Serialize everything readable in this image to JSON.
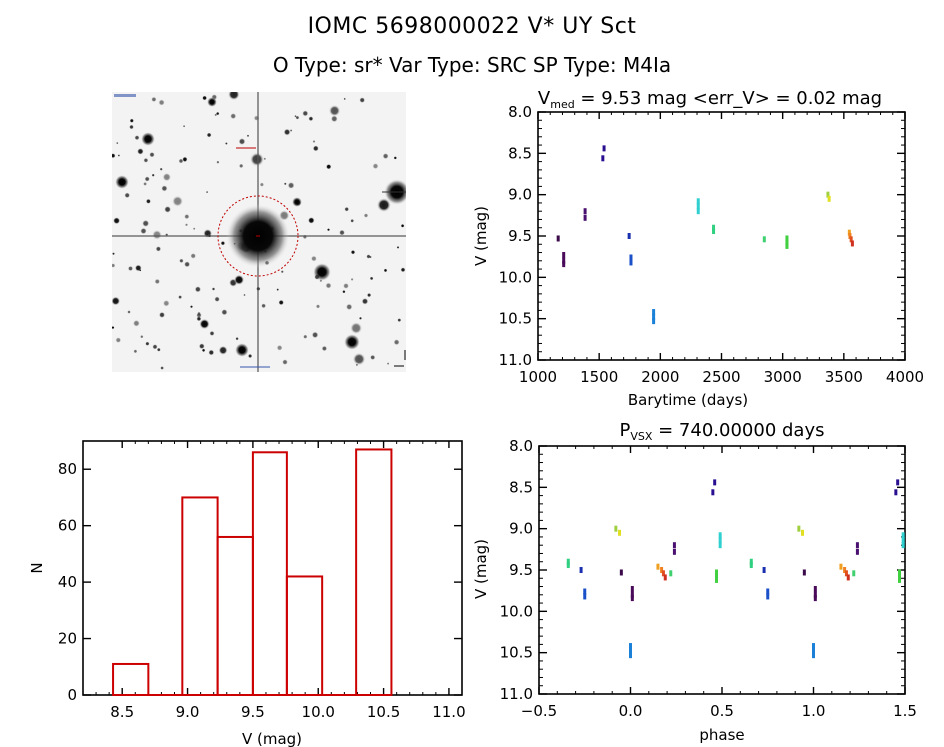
{
  "header": {
    "title": "IOMC 5698000022    V* UY Sct",
    "subtitle": "O Type: sr*   Var Type: SRC   SP Type: M4Ia"
  },
  "sky_image": {
    "description": "Inverted grayscale star-field cutout with red dashed circle marking target"
  },
  "colors": {
    "histogram": "#cc0000",
    "axis": "#000000",
    "circle": "#cc0000"
  },
  "chart_data": [
    {
      "type": "scatter",
      "id": "lightcurve",
      "title_main": "V",
      "title_sub": "med",
      "title_rest": " = 9.53 mag <err_V> = 0.02 mag",
      "xlabel": "Barytime (days)",
      "ylabel": "V (mag)",
      "xlim": [
        1000,
        4000
      ],
      "ylim": [
        11.0,
        8.0
      ],
      "xticks": [
        1000,
        1500,
        2000,
        2500,
        3000,
        3500,
        4000
      ],
      "xtick_labels": [
        "1000",
        "1500",
        "2000",
        "2500",
        "3000",
        "3500",
        "4000"
      ],
      "yticks": [
        8.0,
        8.5,
        9.0,
        9.5,
        10.0,
        10.5,
        11.0
      ],
      "ytick_labels": [
        "8.0",
        "8.5",
        "9.0",
        "9.5",
        "10.0",
        "10.5",
        "11.0"
      ],
      "points": [
        {
          "x": 1165,
          "y": 9.53,
          "color": "#3a0a4a"
        },
        {
          "x": 1210,
          "y": 9.73,
          "color": "#4a0a5a"
        },
        {
          "x": 1210,
          "y": 9.8,
          "color": "#4a0a5a"
        },
        {
          "x": 1210,
          "y": 9.84,
          "color": "#4a0a5a"
        },
        {
          "x": 1385,
          "y": 9.2,
          "color": "#4a1070"
        },
        {
          "x": 1385,
          "y": 9.28,
          "color": "#4a1070"
        },
        {
          "x": 1540,
          "y": 8.44,
          "color": "#2a1090"
        },
        {
          "x": 1530,
          "y": 8.56,
          "color": "#2a1090"
        },
        {
          "x": 1745,
          "y": 9.5,
          "color": "#1a30b0"
        },
        {
          "x": 1760,
          "y": 9.76,
          "color": "#1a50c8"
        },
        {
          "x": 1760,
          "y": 9.82,
          "color": "#1a50c8"
        },
        {
          "x": 1945,
          "y": 10.42,
          "color": "#1a80d8"
        },
        {
          "x": 1945,
          "y": 10.48,
          "color": "#1a80d8"
        },
        {
          "x": 1945,
          "y": 10.53,
          "color": "#1a80d8"
        },
        {
          "x": 2310,
          "y": 9.08,
          "color": "#30d0d0"
        },
        {
          "x": 2310,
          "y": 9.14,
          "color": "#30d0d0"
        },
        {
          "x": 2310,
          "y": 9.2,
          "color": "#30d0d0"
        },
        {
          "x": 2435,
          "y": 9.4,
          "color": "#30d080"
        },
        {
          "x": 2435,
          "y": 9.44,
          "color": "#30d080"
        },
        {
          "x": 2850,
          "y": 9.54,
          "color": "#40d070"
        },
        {
          "x": 3035,
          "y": 9.53,
          "color": "#40d040"
        },
        {
          "x": 3035,
          "y": 9.58,
          "color": "#40d040"
        },
        {
          "x": 3035,
          "y": 9.62,
          "color": "#40d040"
        },
        {
          "x": 3370,
          "y": 9.0,
          "color": "#a0d040"
        },
        {
          "x": 3380,
          "y": 9.05,
          "color": "#e0e020"
        },
        {
          "x": 3545,
          "y": 9.46,
          "color": "#f0a020"
        },
        {
          "x": 3550,
          "y": 9.5,
          "color": "#f08020"
        },
        {
          "x": 3560,
          "y": 9.54,
          "color": "#e05020"
        },
        {
          "x": 3570,
          "y": 9.59,
          "color": "#d03020"
        }
      ]
    },
    {
      "type": "bar",
      "id": "histogram",
      "xlabel": "V (mag)",
      "ylabel": "N",
      "xlim": [
        8.2,
        11.1
      ],
      "ylim": [
        0,
        90
      ],
      "xticks": [
        8.5,
        9.0,
        9.5,
        10.0,
        10.5,
        11.0
      ],
      "xtick_labels": [
        "8.5",
        "9.0",
        "9.5",
        "10.0",
        "10.5",
        "11.0"
      ],
      "yticks": [
        0,
        20,
        40,
        60,
        80
      ],
      "ytick_labels": [
        "0",
        "20",
        "40",
        "60",
        "80"
      ],
      "bins": [
        {
          "left": 8.43,
          "right": 8.7,
          "count": 11
        },
        {
          "left": 8.7,
          "right": 8.96,
          "count": 0
        },
        {
          "left": 8.96,
          "right": 9.23,
          "count": 70
        },
        {
          "left": 9.23,
          "right": 9.5,
          "count": 56
        },
        {
          "left": 9.5,
          "right": 9.76,
          "count": 86
        },
        {
          "left": 9.76,
          "right": 10.03,
          "count": 42
        },
        {
          "left": 10.03,
          "right": 10.29,
          "count": 0
        },
        {
          "left": 10.29,
          "right": 10.56,
          "count": 87
        }
      ]
    },
    {
      "type": "scatter",
      "id": "phased",
      "title_main": "P",
      "title_sub": "VSX",
      "title_rest": " = 740.00000 days",
      "xlabel": "phase",
      "ylabel": "V (mag)",
      "xlim": [
        -0.5,
        1.5
      ],
      "ylim": [
        11.0,
        8.0
      ],
      "xticks": [
        -0.5,
        0.0,
        0.5,
        1.0,
        1.5
      ],
      "xtick_labels": [
        "−0.5",
        "0.0",
        "0.5",
        "1.0",
        "1.5"
      ],
      "yticks": [
        8.0,
        8.5,
        9.0,
        9.5,
        10.0,
        10.5,
        11.0
      ],
      "ytick_labels": [
        "8.0",
        "8.5",
        "9.0",
        "9.5",
        "10.0",
        "10.5",
        "11.0"
      ],
      "points": [
        {
          "x": -0.34,
          "y": 9.4,
          "color": "#30d080"
        },
        {
          "x": -0.34,
          "y": 9.44,
          "color": "#30d080"
        },
        {
          "x": -0.27,
          "y": 9.5,
          "color": "#1a30b0"
        },
        {
          "x": -0.25,
          "y": 9.76,
          "color": "#1a50c8"
        },
        {
          "x": -0.25,
          "y": 9.82,
          "color": "#1a50c8"
        },
        {
          "x": -0.08,
          "y": 9.0,
          "color": "#a0d040"
        },
        {
          "x": -0.06,
          "y": 9.05,
          "color": "#e0e020"
        },
        {
          "x": -0.05,
          "y": 9.53,
          "color": "#3a0a4a"
        },
        {
          "x": 0.0,
          "y": 10.42,
          "color": "#1a80d8"
        },
        {
          "x": 0.0,
          "y": 10.48,
          "color": "#1a80d8"
        },
        {
          "x": 0.0,
          "y": 10.53,
          "color": "#1a80d8"
        },
        {
          "x": 0.01,
          "y": 9.73,
          "color": "#4a0a5a"
        },
        {
          "x": 0.01,
          "y": 9.8,
          "color": "#4a0a5a"
        },
        {
          "x": 0.01,
          "y": 9.84,
          "color": "#4a0a5a"
        },
        {
          "x": 0.15,
          "y": 9.46,
          "color": "#f0a020"
        },
        {
          "x": 0.17,
          "y": 9.5,
          "color": "#f08020"
        },
        {
          "x": 0.18,
          "y": 9.54,
          "color": "#e05020"
        },
        {
          "x": 0.19,
          "y": 9.59,
          "color": "#d03020"
        },
        {
          "x": 0.22,
          "y": 9.54,
          "color": "#40d070"
        },
        {
          "x": 0.24,
          "y": 9.2,
          "color": "#4a1070"
        },
        {
          "x": 0.24,
          "y": 9.28,
          "color": "#4a1070"
        },
        {
          "x": 0.45,
          "y": 8.56,
          "color": "#2a1090"
        },
        {
          "x": 0.46,
          "y": 8.44,
          "color": "#2a1090"
        },
        {
          "x": 0.47,
          "y": 9.53,
          "color": "#40d040"
        },
        {
          "x": 0.47,
          "y": 9.58,
          "color": "#40d040"
        },
        {
          "x": 0.47,
          "y": 9.62,
          "color": "#40d040"
        },
        {
          "x": 0.49,
          "y": 9.08,
          "color": "#30d0d0"
        },
        {
          "x": 0.49,
          "y": 9.14,
          "color": "#30d0d0"
        },
        {
          "x": 0.49,
          "y": 9.2,
          "color": "#30d0d0"
        },
        {
          "x": 0.66,
          "y": 9.4,
          "color": "#30d080"
        },
        {
          "x": 0.66,
          "y": 9.44,
          "color": "#30d080"
        },
        {
          "x": 0.73,
          "y": 9.5,
          "color": "#1a30b0"
        },
        {
          "x": 0.75,
          "y": 9.76,
          "color": "#1a50c8"
        },
        {
          "x": 0.75,
          "y": 9.82,
          "color": "#1a50c8"
        },
        {
          "x": 0.92,
          "y": 9.0,
          "color": "#a0d040"
        },
        {
          "x": 0.94,
          "y": 9.05,
          "color": "#e0e020"
        },
        {
          "x": 0.95,
          "y": 9.53,
          "color": "#3a0a4a"
        },
        {
          "x": 1.0,
          "y": 10.42,
          "color": "#1a80d8"
        },
        {
          "x": 1.0,
          "y": 10.48,
          "color": "#1a80d8"
        },
        {
          "x": 1.0,
          "y": 10.53,
          "color": "#1a80d8"
        },
        {
          "x": 1.01,
          "y": 9.73,
          "color": "#4a0a5a"
        },
        {
          "x": 1.01,
          "y": 9.8,
          "color": "#4a0a5a"
        },
        {
          "x": 1.01,
          "y": 9.84,
          "color": "#4a0a5a"
        },
        {
          "x": 1.15,
          "y": 9.46,
          "color": "#f0a020"
        },
        {
          "x": 1.17,
          "y": 9.5,
          "color": "#f08020"
        },
        {
          "x": 1.18,
          "y": 9.54,
          "color": "#e05020"
        },
        {
          "x": 1.19,
          "y": 9.59,
          "color": "#d03020"
        },
        {
          "x": 1.22,
          "y": 9.54,
          "color": "#40d070"
        },
        {
          "x": 1.24,
          "y": 9.2,
          "color": "#4a1070"
        },
        {
          "x": 1.24,
          "y": 9.28,
          "color": "#4a1070"
        },
        {
          "x": 1.45,
          "y": 8.56,
          "color": "#2a1090"
        },
        {
          "x": 1.46,
          "y": 8.44,
          "color": "#2a1090"
        },
        {
          "x": 1.47,
          "y": 9.53,
          "color": "#40d040"
        },
        {
          "x": 1.47,
          "y": 9.58,
          "color": "#40d040"
        },
        {
          "x": 1.47,
          "y": 9.62,
          "color": "#40d040"
        },
        {
          "x": 1.49,
          "y": 9.08,
          "color": "#30d0d0"
        },
        {
          "x": 1.49,
          "y": 9.14,
          "color": "#30d0d0"
        },
        {
          "x": 1.49,
          "y": 9.2,
          "color": "#30d0d0"
        }
      ]
    }
  ]
}
